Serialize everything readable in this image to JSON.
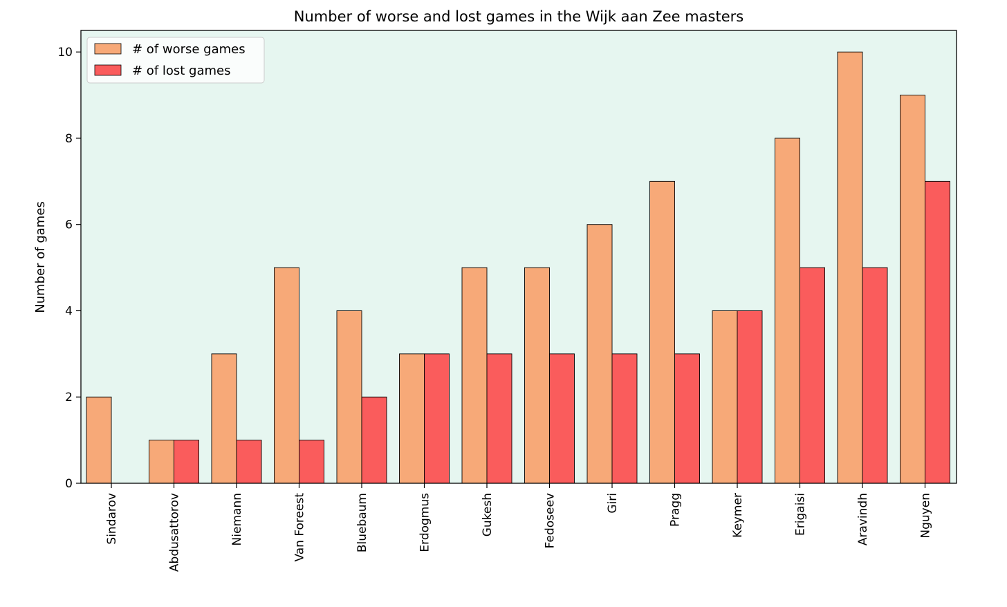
{
  "chart_data": {
    "type": "bar",
    "title": "Number of worse and lost games in the Wijk aan Zee masters",
    "xlabel": "",
    "ylabel": "Number of games",
    "ylim": [
      0,
      10.5
    ],
    "yticks": [
      0,
      2,
      4,
      6,
      8,
      10
    ],
    "ytick_labels": [
      "0",
      "2",
      "4",
      "6",
      "8",
      "10"
    ],
    "grid": false,
    "legend_position": "top-left",
    "categories": [
      "Sindarov",
      "Abdusattorov",
      "Niemann",
      "Van Foreest",
      "Bluebaum",
      "Erdogmus",
      "Gukesh",
      "Fedoseev",
      "Giri",
      "Pragg",
      "Keymer",
      "Erigaisi",
      "Aravindh",
      "Nguyen"
    ],
    "series": [
      {
        "name": "# of worse games",
        "color": "#f7a978",
        "values": [
          2,
          1,
          3,
          5,
          4,
          3,
          5,
          5,
          6,
          7,
          4,
          8,
          10,
          9
        ]
      },
      {
        "name": "# of lost games",
        "color": "#fa5c5c",
        "values": [
          0,
          1,
          1,
          1,
          2,
          3,
          3,
          3,
          3,
          3,
          4,
          5,
          5,
          7
        ]
      }
    ],
    "plot_background": "#e6f6f0"
  }
}
